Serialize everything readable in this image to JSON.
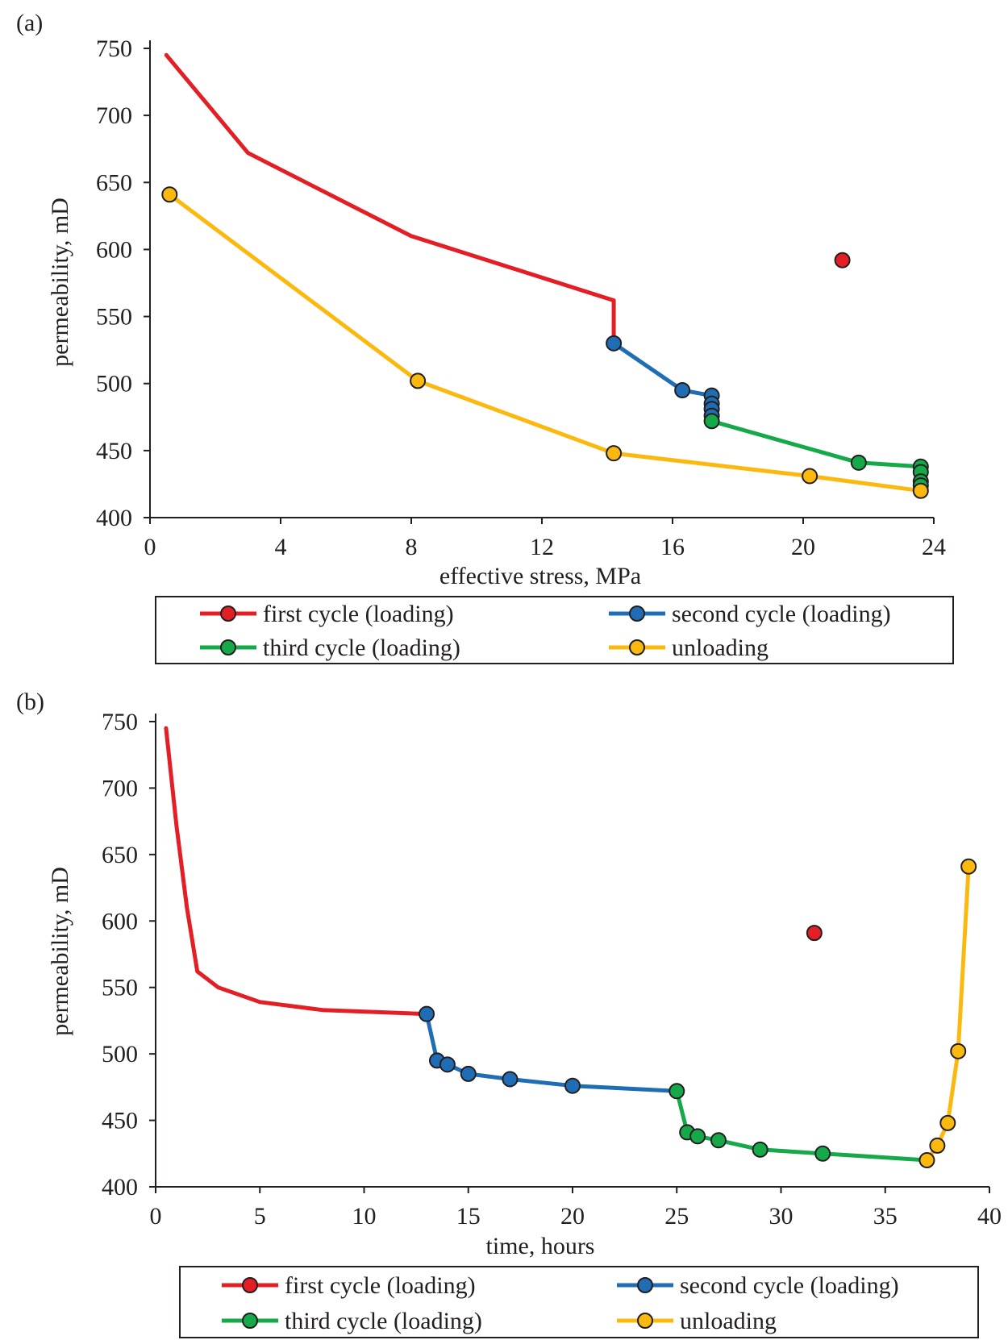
{
  "chart_data": [
    {
      "type": "line",
      "panel_label": "(a)",
      "xlabel": "effective stress, MPa",
      "ylabel": "permeability, mD",
      "xlim": [
        0,
        24
      ],
      "ylim": [
        400,
        750
      ],
      "xticks": [
        0,
        4,
        8,
        12,
        16,
        20,
        24
      ],
      "yticks": [
        400,
        450,
        500,
        550,
        600,
        650,
        700,
        750
      ],
      "grid": false,
      "legend_position": "below",
      "series": [
        {
          "name": "first cycle (loading)",
          "color": "#e31e24",
          "line_points": [
            [
              0.5,
              745
            ],
            [
              3.0,
              672
            ],
            [
              8.0,
              610
            ],
            [
              14.2,
              562
            ],
            [
              14.2,
              530
            ]
          ],
          "marker_points": [
            [
              21.2,
              592
            ]
          ]
        },
        {
          "name": "second cycle (loading)",
          "color": "#1f6db5",
          "line_points": [
            [
              14.2,
              530
            ],
            [
              16.3,
              495
            ],
            [
              17.2,
              491
            ],
            [
              17.2,
              485
            ],
            [
              17.2,
              481
            ],
            [
              17.2,
              476
            ],
            [
              17.2,
              472
            ]
          ],
          "marker_points": [
            [
              14.2,
              530
            ],
            [
              16.3,
              495
            ],
            [
              17.2,
              491
            ],
            [
              17.2,
              485
            ],
            [
              17.2,
              481
            ],
            [
              17.2,
              476
            ]
          ]
        },
        {
          "name": "third cycle (loading)",
          "color": "#15a94a",
          "line_points": [
            [
              17.2,
              472
            ],
            [
              21.7,
              441
            ],
            [
              23.6,
              438
            ],
            [
              23.6,
              434
            ],
            [
              23.6,
              427
            ],
            [
              23.6,
              424
            ]
          ],
          "marker_points": [
            [
              17.2,
              472
            ],
            [
              21.7,
              441
            ],
            [
              23.6,
              438
            ],
            [
              23.6,
              434
            ],
            [
              23.6,
              427
            ],
            [
              23.6,
              424
            ]
          ]
        },
        {
          "name": "unloading",
          "color": "#fbb910",
          "line_points": [
            [
              23.6,
              420
            ],
            [
              20.2,
              431
            ],
            [
              14.2,
              448
            ],
            [
              8.2,
              502
            ],
            [
              0.6,
              641
            ]
          ],
          "marker_points": [
            [
              23.6,
              420
            ],
            [
              20.2,
              431
            ],
            [
              14.2,
              448
            ],
            [
              8.2,
              502
            ],
            [
              0.6,
              641
            ]
          ]
        }
      ]
    },
    {
      "type": "line",
      "panel_label": "(b)",
      "xlabel": "time, hours",
      "ylabel": "permeability, mD",
      "xlim": [
        0,
        40
      ],
      "ylim": [
        400,
        750
      ],
      "xticks": [
        0,
        5,
        10,
        15,
        20,
        25,
        30,
        35,
        40
      ],
      "yticks": [
        400,
        450,
        500,
        550,
        600,
        650,
        700,
        750
      ],
      "grid": false,
      "legend_position": "below",
      "series": [
        {
          "name": "first cycle (loading)",
          "color": "#e31e24",
          "line_points": [
            [
              0.5,
              745
            ],
            [
              1.0,
              672
            ],
            [
              1.5,
              610
            ],
            [
              2.0,
              562
            ],
            [
              3.0,
              550
            ],
            [
              5.0,
              539
            ],
            [
              8.0,
              533
            ],
            [
              13.0,
              530
            ]
          ],
          "marker_points": [
            [
              31.6,
              591
            ]
          ]
        },
        {
          "name": "second cycle (loading)",
          "color": "#1f6db5",
          "line_points": [
            [
              13.0,
              530
            ],
            [
              13.5,
              495
            ],
            [
              14.0,
              492
            ],
            [
              15.0,
              485
            ],
            [
              17.0,
              481
            ],
            [
              20.0,
              476
            ],
            [
              25.0,
              472
            ]
          ],
          "marker_points": [
            [
              13.0,
              530
            ],
            [
              13.5,
              495
            ],
            [
              14.0,
              492
            ],
            [
              15.0,
              485
            ],
            [
              17.0,
              481
            ],
            [
              20.0,
              476
            ]
          ]
        },
        {
          "name": "third cycle (loading)",
          "color": "#15a94a",
          "line_points": [
            [
              25.0,
              472
            ],
            [
              25.5,
              441
            ],
            [
              26.0,
              438
            ],
            [
              27.0,
              435
            ],
            [
              29.0,
              428
            ],
            [
              32.0,
              425
            ],
            [
              37.0,
              420
            ]
          ],
          "marker_points": [
            [
              25.0,
              472
            ],
            [
              25.5,
              441
            ],
            [
              26.0,
              438
            ],
            [
              27.0,
              435
            ],
            [
              29.0,
              428
            ],
            [
              32.0,
              425
            ]
          ]
        },
        {
          "name": "unloading",
          "color": "#fbb910",
          "line_points": [
            [
              37.0,
              420
            ],
            [
              37.5,
              431
            ],
            [
              38.0,
              448
            ],
            [
              38.5,
              502
            ],
            [
              39.0,
              641
            ]
          ],
          "marker_points": [
            [
              37.0,
              420
            ],
            [
              37.5,
              431
            ],
            [
              38.0,
              448
            ],
            [
              38.5,
              502
            ],
            [
              39.0,
              641
            ]
          ]
        }
      ]
    }
  ]
}
